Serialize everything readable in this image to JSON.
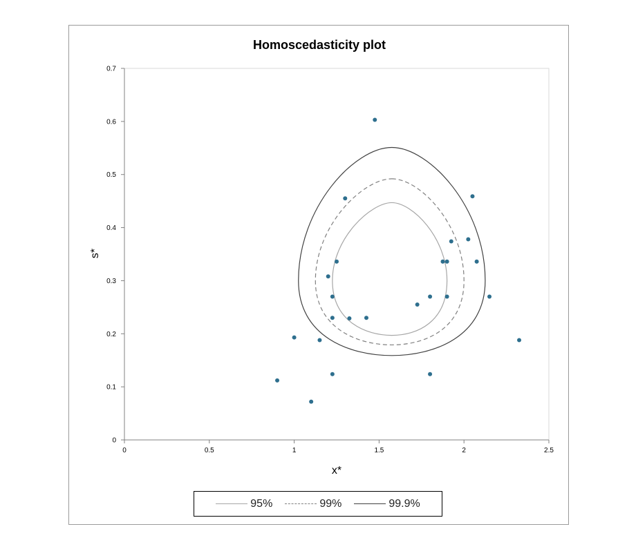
{
  "chart_data": {
    "type": "scatter",
    "title": "Homoscedasticity plot",
    "xlabel": "x*",
    "ylabel": "s*",
    "xlim": [
      0,
      2.5
    ],
    "ylim": [
      0,
      0.7
    ],
    "xticks": [
      0,
      0.5,
      1,
      1.5,
      2,
      2.5
    ],
    "yticks": [
      0,
      0.1,
      0.2,
      0.3,
      0.4,
      0.5,
      0.6,
      0.7
    ],
    "xtick_labels": [
      "0",
      "0.5",
      "1",
      "1.5",
      "2",
      "2.5"
    ],
    "ytick_labels": [
      "0",
      "0.1",
      "0.2",
      "0.3",
      "0.4",
      "0.5",
      "0.6",
      "0.7"
    ],
    "grid": false,
    "legend_position": "bottom",
    "point_color": "#2e6f8e",
    "points": [
      {
        "x": 0.9,
        "y": 0.112
      },
      {
        "x": 1.0,
        "y": 0.193
      },
      {
        "x": 1.1,
        "y": 0.072
      },
      {
        "x": 1.15,
        "y": 0.188
      },
      {
        "x": 1.2,
        "y": 0.308
      },
      {
        "x": 1.225,
        "y": 0.27
      },
      {
        "x": 1.225,
        "y": 0.23
      },
      {
        "x": 1.225,
        "y": 0.124
      },
      {
        "x": 1.25,
        "y": 0.336
      },
      {
        "x": 1.3,
        "y": 0.455
      },
      {
        "x": 1.325,
        "y": 0.229
      },
      {
        "x": 1.425,
        "y": 0.23
      },
      {
        "x": 1.475,
        "y": 0.603
      },
      {
        "x": 1.725,
        "y": 0.255
      },
      {
        "x": 1.8,
        "y": 0.27
      },
      {
        "x": 1.8,
        "y": 0.124
      },
      {
        "x": 1.875,
        "y": 0.336
      },
      {
        "x": 1.9,
        "y": 0.336
      },
      {
        "x": 1.9,
        "y": 0.27
      },
      {
        "x": 1.925,
        "y": 0.374
      },
      {
        "x": 2.025,
        "y": 0.378
      },
      {
        "x": 2.05,
        "y": 0.459
      },
      {
        "x": 2.075,
        "y": 0.336
      },
      {
        "x": 2.15,
        "y": 0.27
      },
      {
        "x": 2.325,
        "y": 0.188
      }
    ],
    "contours": [
      {
        "name": "95%",
        "color": "#a6a6a6",
        "dash": "",
        "top": 0.447,
        "bottom": 0.197,
        "left": 1.225,
        "right": 1.9,
        "upper_width_factor": 0.36
      },
      {
        "name": "99%",
        "color": "#808080",
        "dash": "6,4",
        "top": 0.492,
        "bottom": 0.179,
        "left": 1.125,
        "right": 2.0,
        "upper_width_factor": 0.38
      },
      {
        "name": "99.9%",
        "color": "#404040",
        "dash": "",
        "top": 0.551,
        "bottom": 0.159,
        "left": 1.025,
        "right": 2.125,
        "upper_width_factor": 0.4
      }
    ],
    "center_x": 1.575,
    "center_y": 0.3
  }
}
